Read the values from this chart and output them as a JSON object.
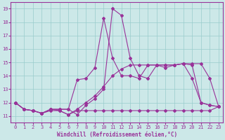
{
  "xlabel": "Windchill (Refroidissement éolien,°C)",
  "background_color": "#cce8e8",
  "line_color": "#993399",
  "grid_color": "#99cccc",
  "xlim": [
    -0.5,
    23.5
  ],
  "ylim": [
    10.5,
    19.5
  ],
  "yticks": [
    11,
    12,
    13,
    14,
    15,
    16,
    17,
    18,
    19
  ],
  "xticks": [
    0,
    1,
    2,
    3,
    4,
    5,
    6,
    7,
    8,
    9,
    10,
    11,
    12,
    13,
    14,
    15,
    16,
    17,
    18,
    19,
    20,
    21,
    22,
    23
  ],
  "s1_x": [
    0,
    1,
    2,
    3,
    4,
    5,
    6,
    7,
    8,
    9,
    10,
    11,
    12,
    13,
    14,
    15,
    16,
    17,
    18,
    19,
    20,
    21,
    22,
    23
  ],
  "s1_y": [
    12.0,
    11.5,
    11.4,
    11.2,
    11.4,
    11.4,
    11.1,
    11.4,
    11.4,
    11.4,
    11.4,
    11.4,
    11.4,
    11.4,
    11.4,
    11.4,
    11.4,
    11.4,
    11.4,
    11.4,
    11.4,
    11.4,
    11.4,
    11.7
  ],
  "s2_x": [
    0,
    1,
    2,
    3,
    4,
    5,
    6,
    7,
    8,
    9,
    10,
    11,
    12,
    13,
    14,
    15,
    16,
    17,
    18,
    19,
    20,
    21,
    22,
    23
  ],
  "s2_y": [
    12.0,
    11.5,
    11.4,
    11.2,
    11.5,
    11.4,
    11.1,
    11.5,
    12.0,
    12.5,
    13.2,
    14.0,
    14.5,
    14.8,
    14.8,
    14.8,
    14.8,
    14.8,
    14.8,
    14.9,
    14.8,
    12.0,
    11.8,
    11.7
  ],
  "s3_x": [
    0,
    1,
    2,
    3,
    4,
    5,
    6,
    7,
    8,
    9,
    10,
    11,
    12,
    13,
    14,
    15,
    16,
    17,
    18,
    19,
    20,
    21,
    22,
    23
  ],
  "s3_y": [
    12.0,
    11.5,
    11.4,
    11.2,
    11.5,
    11.5,
    11.5,
    13.7,
    13.8,
    14.6,
    18.3,
    15.3,
    14.0,
    14.0,
    13.8,
    14.8,
    14.8,
    14.8,
    14.8,
    14.9,
    13.8,
    12.0,
    11.8,
    11.7
  ],
  "s4_x": [
    0,
    1,
    2,
    3,
    4,
    5,
    6,
    7,
    8,
    9,
    10,
    11,
    12,
    13,
    14,
    15,
    16,
    17,
    18,
    19,
    20,
    21,
    22,
    23
  ],
  "s4_y": [
    12.0,
    11.5,
    11.4,
    11.2,
    11.5,
    11.5,
    11.5,
    11.1,
    11.8,
    12.3,
    13.0,
    19.0,
    18.5,
    15.3,
    14.0,
    13.8,
    14.8,
    14.6,
    14.8,
    14.9,
    14.9,
    14.9,
    13.8,
    11.7
  ]
}
